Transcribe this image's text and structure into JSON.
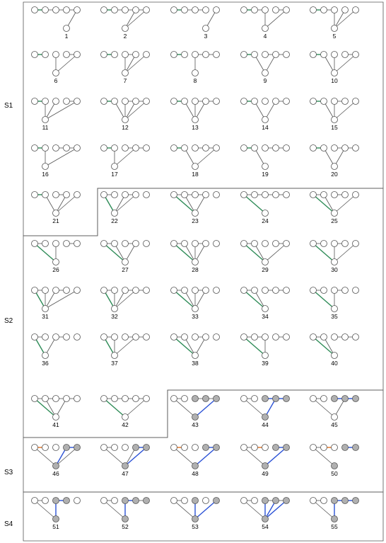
{
  "colors": {
    "edge": "#555555",
    "green": "#2e8b57",
    "orange": "#e07020",
    "blue": "#2b52d6",
    "node_fill": "#ffffff",
    "node_gray": "#b0b0b0",
    "node_stroke": "#555555",
    "region_border": "#555555"
  },
  "groups": [
    {
      "label": "S1",
      "range": [
        1,
        21
      ]
    },
    {
      "label": "S2",
      "range": [
        22,
        42
      ]
    },
    {
      "label": "S3",
      "range": [
        43,
        50
      ]
    },
    {
      "label": "S4",
      "range": [
        51,
        55
      ]
    }
  ],
  "graphs": [
    {
      "label": "1",
      "b": 3,
      "n": [
        4
      ],
      "g": [
        [
          0,
          1
        ]
      ],
      "o": [],
      "u": [],
      "gray": []
    },
    {
      "label": "2",
      "b": 2,
      "n": [
        3,
        4
      ],
      "g": [
        [
          0,
          1
        ]
      ],
      "o": [],
      "u": [],
      "gray": []
    },
    {
      "label": "3",
      "b": 3,
      "n": [
        4
      ],
      "g": [
        [
          0,
          1
        ]
      ],
      "o": [],
      "u": [],
      "gray": [],
      "noEdge": [
        [
          3,
          4
        ]
      ]
    },
    {
      "label": "4",
      "b": 2,
      "n": [
        2,
        4
      ],
      "g": [
        [
          0,
          1
        ]
      ],
      "o": [],
      "u": [],
      "gray": [],
      "noEdge": [
        [
          2,
          3
        ]
      ]
    },
    {
      "label": "5",
      "b": 2,
      "n": [
        2,
        3,
        4
      ],
      "g": [
        [
          0,
          1
        ]
      ],
      "o": [],
      "u": [],
      "gray": [],
      "noEdge": [
        [
          2,
          3
        ],
        [
          3,
          4
        ]
      ]
    },
    {
      "label": "6",
      "b": 2,
      "n": [
        2,
        4
      ],
      "g": [
        [
          0,
          1
        ]
      ],
      "o": [],
      "u": [],
      "gray": [],
      "noEdge": [
        [
          1,
          2
        ],
        [
          2,
          3
        ]
      ]
    },
    {
      "label": "7",
      "b": 2,
      "n": [
        2,
        3,
        4
      ],
      "g": [
        [
          0,
          1
        ]
      ],
      "o": [],
      "u": [],
      "gray": [],
      "noEdge": [
        [
          1,
          2
        ],
        [
          3,
          4
        ]
      ]
    },
    {
      "label": "8",
      "b": 2,
      "n": [
        2
      ],
      "g": [
        [
          0,
          1
        ]
      ],
      "o": [],
      "u": [],
      "gray": [],
      "noEdge": [
        [
          1,
          2
        ]
      ]
    },
    {
      "label": "9",
      "b": 2,
      "n": [
        1,
        3
      ],
      "g": [
        [
          0,
          1
        ]
      ],
      "o": [],
      "u": [],
      "gray": [],
      "noEdge": [
        [
          1,
          2
        ]
      ]
    },
    {
      "label": "10",
      "b": 2,
      "n": [
        1,
        2,
        4
      ],
      "g": [
        [
          0,
          1
        ]
      ],
      "o": [],
      "u": [],
      "gray": [],
      "noEdge": [
        [
          1,
          2
        ],
        [
          2,
          3
        ]
      ]
    },
    {
      "label": "11",
      "b": 1,
      "n": [
        1,
        2,
        4
      ],
      "g": [
        [
          0,
          1
        ]
      ],
      "o": [],
      "u": [],
      "gray": [],
      "noEdge": [
        [
          1,
          2
        ],
        [
          2,
          3
        ]
      ]
    },
    {
      "label": "12",
      "b": 2,
      "n": [
        1,
        2,
        3,
        4
      ],
      "g": [
        [
          0,
          1
        ]
      ],
      "o": [],
      "u": [],
      "gray": [],
      "noEdge": [
        [
          1,
          2
        ]
      ]
    },
    {
      "label": "13",
      "b": 2,
      "n": [
        1,
        2,
        3
      ],
      "g": [
        [
          0,
          1
        ]
      ],
      "o": [],
      "u": [],
      "gray": [],
      "noEdge": [
        [
          1,
          2
        ]
      ]
    },
    {
      "label": "14",
      "b": 2,
      "n": [
        1,
        3
      ],
      "g": [
        [
          0,
          1
        ]
      ],
      "o": [],
      "u": [],
      "gray": [],
      "noEdge": [
        [
          1,
          2
        ],
        [
          2,
          3
        ]
      ]
    },
    {
      "label": "15",
      "b": 2,
      "n": [
        1,
        2,
        4
      ],
      "g": [
        [
          0,
          1
        ]
      ],
      "o": [],
      "u": [],
      "gray": [],
      "noEdge": [
        [
          1,
          2
        ],
        [
          3,
          4
        ]
      ]
    },
    {
      "label": "16",
      "b": 1,
      "n": [
        1,
        4
      ],
      "g": [
        [
          0,
          1
        ]
      ],
      "o": [],
      "u": [],
      "gray": [],
      "noEdge": [
        [
          1,
          2
        ]
      ]
    },
    {
      "label": "17",
      "b": 1,
      "n": [
        1,
        3
      ],
      "g": [
        [
          0,
          1
        ]
      ],
      "o": [],
      "u": [],
      "gray": [],
      "noEdge": [
        [
          1,
          2
        ]
      ]
    },
    {
      "label": "18",
      "b": 2,
      "n": [
        1,
        4
      ],
      "g": [
        [
          0,
          1
        ]
      ],
      "o": [],
      "u": [],
      "gray": [],
      "noEdge": [
        [
          1,
          2
        ]
      ]
    },
    {
      "label": "19",
      "b": 2,
      "n": [
        1
      ],
      "g": [
        [
          0,
          1
        ]
      ],
      "o": [],
      "u": [],
      "gray": [],
      "noEdge": [
        [
          1,
          2
        ]
      ]
    },
    {
      "label": "20",
      "b": 2,
      "n": [
        1,
        3
      ],
      "g": [
        [
          0,
          1
        ]
      ],
      "o": [],
      "u": [],
      "gray": [],
      "noEdge": [
        [
          1,
          2
        ]
      ]
    },
    {
      "label": "21",
      "b": 2,
      "n": [
        1,
        3,
        4
      ],
      "g": [
        [
          0,
          1
        ]
      ],
      "o": [],
      "u": [],
      "gray": [],
      "noEdge": [
        [
          1,
          2
        ],
        [
          3,
          4
        ]
      ]
    },
    {
      "label": "22",
      "b": 1,
      "n": [
        0,
        2,
        3
      ],
      "g": [
        [
          0,
          "B"
        ]
      ],
      "o": [],
      "u": [],
      "gray": [],
      "noEdge": [
        [
          1,
          2
        ],
        [
          3,
          4
        ]
      ]
    },
    {
      "label": "23",
      "b": 2,
      "n": [
        0,
        1,
        3
      ],
      "g": [
        [
          0,
          "B"
        ]
      ],
      "o": [],
      "u": [],
      "gray": [],
      "noEdge": [
        [
          3,
          4
        ]
      ]
    },
    {
      "label": "24",
      "b": 2,
      "n": [
        0
      ],
      "g": [
        [
          0,
          "B"
        ]
      ],
      "o": [],
      "u": [],
      "gray": []
    },
    {
      "label": "25",
      "b": 2,
      "n": [
        0,
        1,
        4
      ],
      "g": [
        [
          0,
          "B"
        ]
      ],
      "o": [],
      "u": [],
      "gray": [],
      "noEdge": [
        [
          1,
          2
        ],
        [
          3,
          4
        ]
      ]
    },
    {
      "label": "26",
      "b": 2,
      "n": [
        0,
        2
      ],
      "g": [
        [
          0,
          "B"
        ]
      ],
      "o": [],
      "u": [],
      "gray": [],
      "noEdge": [
        [
          1,
          2
        ],
        [
          2,
          3
        ]
      ]
    },
    {
      "label": "27",
      "b": 2,
      "n": [
        0,
        1,
        3
      ],
      "g": [
        [
          0,
          "B"
        ]
      ],
      "o": [],
      "u": [],
      "gray": [],
      "noEdge": [
        [
          1,
          2
        ],
        [
          3,
          4
        ]
      ]
    },
    {
      "label": "28",
      "b": 2,
      "n": [
        0,
        1,
        2,
        3
      ],
      "g": [
        [
          0,
          "B"
        ]
      ],
      "o": [],
      "u": [],
      "gray": [],
      "noEdge": [
        [
          1,
          2
        ],
        [
          3,
          4
        ]
      ]
    },
    {
      "label": "29",
      "b": 2,
      "n": [
        0,
        1,
        4
      ],
      "g": [
        [
          0,
          "B"
        ]
      ],
      "o": [],
      "u": [],
      "gray": [],
      "noEdge": [
        [
          1,
          2
        ],
        [
          2,
          3
        ]
      ]
    },
    {
      "label": "30",
      "b": 2,
      "n": [
        0,
        2,
        4
      ],
      "g": [
        [
          0,
          "B"
        ]
      ],
      "o": [],
      "u": [],
      "gray": [],
      "noEdge": [
        [
          1,
          2
        ],
        [
          3,
          4
        ]
      ]
    },
    {
      "label": "31",
      "b": 1,
      "n": [
        0,
        1,
        2,
        4
      ],
      "g": [
        [
          0,
          "B"
        ]
      ],
      "o": [],
      "u": [],
      "gray": [],
      "noEdge": [
        [
          1,
          2
        ],
        [
          3,
          4
        ]
      ]
    },
    {
      "label": "32",
      "b": 1,
      "n": [
        0,
        1,
        2,
        3
      ],
      "g": [
        [
          0,
          "B"
        ]
      ],
      "o": [],
      "u": [],
      "gray": [],
      "noEdge": [
        [
          1,
          2
        ]
      ]
    },
    {
      "label": "33",
      "b": 2,
      "n": [
        0,
        1,
        2,
        3
      ],
      "g": [
        [
          0,
          "B"
        ]
      ],
      "o": [],
      "u": [],
      "gray": [],
      "noEdge": [
        [
          1,
          2
        ],
        [
          3,
          4
        ]
      ]
    },
    {
      "label": "34",
      "b": 2,
      "n": [
        0,
        1
      ],
      "g": [
        [
          0,
          "B"
        ]
      ],
      "o": [],
      "u": [],
      "gray": [],
      "noEdge": [
        [
          1,
          2
        ]
      ]
    },
    {
      "label": "35",
      "b": 2,
      "n": [
        0,
        2
      ],
      "g": [
        [
          0,
          "B"
        ]
      ],
      "o": [],
      "u": [],
      "gray": [],
      "noEdge": [
        [
          1,
          2
        ],
        [
          3,
          4
        ]
      ]
    },
    {
      "label": "36",
      "b": 1,
      "n": [
        0,
        2
      ],
      "g": [
        [
          0,
          "B"
        ]
      ],
      "o": [],
      "u": [],
      "gray": [],
      "noEdge": [
        [
          1,
          2
        ],
        [
          3,
          4
        ]
      ]
    },
    {
      "label": "37",
      "b": 1,
      "n": [
        0,
        1,
        3
      ],
      "g": [
        [
          0,
          "B"
        ]
      ],
      "o": [],
      "u": [],
      "gray": [],
      "noEdge": [
        [
          1,
          2
        ]
      ]
    },
    {
      "label": "38",
      "b": 2,
      "n": [
        0,
        1,
        3
      ],
      "g": [
        [
          0,
          "B"
        ]
      ],
      "o": [],
      "u": [],
      "gray": [],
      "noEdge": [
        [
          1,
          2
        ],
        [
          3,
          4
        ]
      ]
    },
    {
      "label": "39",
      "b": 2,
      "n": [
        0,
        2
      ],
      "g": [
        [
          0,
          "B"
        ]
      ],
      "o": [],
      "u": [],
      "gray": [],
      "noEdge": [
        [
          2,
          3
        ]
      ]
    },
    {
      "label": "40",
      "b": 2,
      "n": [
        0,
        1
      ],
      "g": [
        [
          0,
          "B"
        ]
      ],
      "o": [],
      "u": [],
      "gray": [],
      "noEdge": [
        [
          1,
          2
        ]
      ]
    },
    {
      "label": "41",
      "b": 2,
      "n": [
        0,
        1,
        3
      ],
      "g": [
        [
          0,
          "B"
        ]
      ],
      "o": [],
      "u": [],
      "gray": []
    },
    {
      "label": "42",
      "b": 2,
      "n": [
        0,
        4
      ],
      "g": [
        [
          0,
          "B"
        ]
      ],
      "o": [],
      "u": [],
      "gray": []
    },
    {
      "label": "43",
      "b": 2,
      "n": [
        0,
        4
      ],
      "g": [],
      "o": [],
      "u": [
        [
          "B",
          4
        ]
      ],
      "gray": [
        2,
        3,
        4,
        "B"
      ],
      "noEdge": [
        [
          1,
          2
        ]
      ]
    },
    {
      "label": "44",
      "b": 2,
      "n": [
        0,
        3
      ],
      "g": [],
      "o": [],
      "u": [
        [
          2,
          3
        ],
        [
          3,
          4
        ],
        [
          "B",
          3
        ]
      ],
      "gray": [
        2,
        3,
        4,
        "B"
      ],
      "noEdge": [
        [
          1,
          2
        ]
      ]
    },
    {
      "label": "45",
      "b": 2,
      "n": [
        0,
        3
      ],
      "g": [],
      "o": [],
      "u": [
        [
          2,
          3
        ],
        [
          3,
          4
        ]
      ],
      "gray": [
        2,
        3,
        4
      ],
      "noEdge": [
        [
          1,
          2
        ]
      ]
    },
    {
      "label": "46",
      "b": 2,
      "n": [
        0,
        4
      ],
      "g": [],
      "o": [
        [
          0,
          1
        ]
      ],
      "u": [
        [
          3,
          4
        ],
        [
          "B",
          3
        ]
      ],
      "gray": [
        3,
        4,
        "B"
      ],
      "noEdge": [
        [
          1,
          2
        ],
        [
          2,
          3
        ]
      ]
    },
    {
      "label": "47",
      "b": 2,
      "n": [
        0,
        3,
        4
      ],
      "g": [],
      "o": [],
      "u": [
        [
          3,
          4
        ],
        [
          "B",
          4
        ]
      ],
      "gray": [
        3,
        4,
        "B"
      ],
      "noEdge": [
        [
          1,
          2
        ],
        [
          2,
          3
        ]
      ]
    },
    {
      "label": "48",
      "b": 2,
      "n": [
        0,
        4
      ],
      "g": [],
      "o": [
        [
          0,
          1
        ]
      ],
      "u": [
        [
          3,
          4
        ],
        [
          "B",
          4
        ]
      ],
      "gray": [
        3,
        4,
        "B"
      ],
      "noEdge": [
        [
          1,
          2
        ],
        [
          2,
          3
        ]
      ]
    },
    {
      "label": "49",
      "b": 2,
      "n": [
        0,
        4
      ],
      "g": [],
      "o": [
        [
          1,
          2
        ]
      ],
      "u": [
        [
          3,
          4
        ],
        [
          "B",
          4
        ]
      ],
      "gray": [
        3,
        4,
        "B"
      ],
      "noEdge": [
        [
          2,
          3
        ]
      ]
    },
    {
      "label": "50",
      "b": 2,
      "n": [
        0
      ],
      "g": [],
      "o": [
        [
          1,
          2
        ]
      ],
      "u": [
        [
          3,
          4
        ]
      ],
      "gray": [
        3,
        4,
        "B"
      ],
      "noEdge": [
        [
          2,
          3
        ]
      ]
    },
    {
      "label": "51",
      "b": 2,
      "n": [
        0,
        2
      ],
      "g": [],
      "o": [],
      "u": [
        [
          2,
          3
        ],
        [
          "B",
          2
        ]
      ],
      "gray": [
        2,
        3,
        "B"
      ],
      "noEdge": [
        [
          1,
          2
        ],
        [
          3,
          4
        ]
      ]
    },
    {
      "label": "52",
      "b": 2,
      "n": [
        0,
        2
      ],
      "g": [],
      "o": [],
      "u": [
        [
          2,
          3
        ],
        [
          "B",
          2
        ]
      ],
      "gray": [
        2,
        3,
        4,
        "B"
      ],
      "noEdge": [
        [
          1,
          2
        ]
      ]
    },
    {
      "label": "53",
      "b": 2,
      "n": [
        0,
        2,
        4
      ],
      "g": [],
      "o": [],
      "u": [
        [
          "B",
          2
        ],
        [
          "B",
          4
        ]
      ],
      "gray": [
        2,
        4,
        "B"
      ],
      "noEdge": [
        [
          1,
          2
        ],
        [
          2,
          3
        ],
        [
          3,
          4
        ]
      ]
    },
    {
      "label": "54",
      "b": 2,
      "n": [
        0,
        2,
        3,
        4
      ],
      "g": [],
      "o": [],
      "u": [
        [
          "B",
          2
        ],
        [
          "B",
          3
        ],
        [
          "B",
          4
        ]
      ],
      "gray": [
        2,
        3,
        4,
        "B"
      ],
      "noEdge": [
        [
          1,
          2
        ]
      ]
    },
    {
      "label": "55",
      "b": 2,
      "n": [
        0,
        2
      ],
      "g": [],
      "o": [],
      "u": [
        [
          2,
          3
        ],
        [
          3,
          4
        ],
        [
          "B",
          2
        ]
      ],
      "gray": [
        2,
        3,
        4,
        "B"
      ],
      "noEdge": [
        [
          1,
          2
        ]
      ]
    }
  ]
}
